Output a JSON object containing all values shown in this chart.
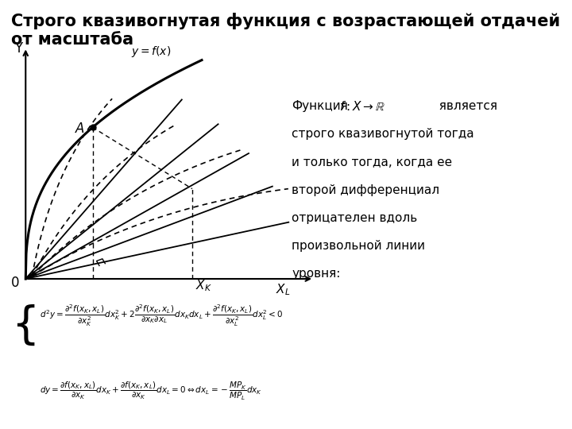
{
  "title": "Строго квазивогнутая функция с возрастающей отдачей от масштаба",
  "title_fontsize": 16,
  "background_color": "#ffffff",
  "text_block": "Функция",
  "formula_text": "$f : X \\to \\mathbb{R}$",
  "description": "  является\nстрого квазивогнутой тогда\nи только тогда, когда ее\nвторой дифференциал\nотрицателен вдоль\nпроизвольной линии\nуровня:",
  "eq1": "$d^2y = \\dfrac{\\partial^2 f(x_K, x_L)}{\\partial x_K^2}dx_K^2 + 2\\dfrac{\\partial^2 f(x_K, x_L)}{\\partial x_K \\partial x_L}dx_K dx_L + \\dfrac{\\partial^2 f(x_K, x_L)}{\\partial x_L^2}dx_L^2 < 0$",
  "eq2": "$dy = \\dfrac{\\partial f(x_K, x_L)}{\\partial x_K}dx_K + \\dfrac{\\partial f(x_K, x_L)}{\\partial x_K}dx_L = 0 \\Leftrightarrow dx_L = -\\dfrac{MP_K}{MP_L}dx_K$",
  "label_y": "Y",
  "label_yfx": "$y=f(x)$",
  "label_A": "$A$",
  "label_xk": "$X_K$",
  "label_xl": "$X_L$",
  "label_0": "0"
}
